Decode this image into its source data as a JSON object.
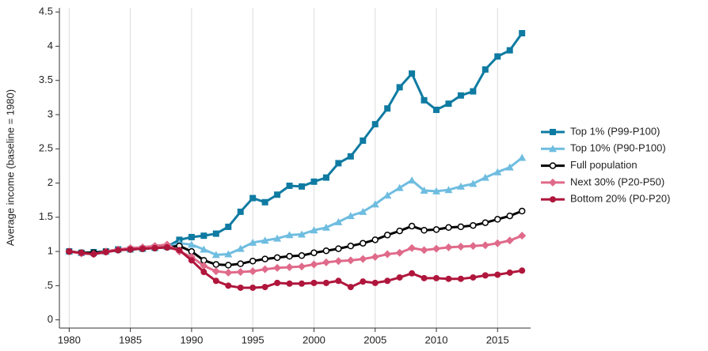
{
  "chart_data": {
    "type": "line",
    "y_label": "Average income (baseline = 1980)",
    "x": [
      1980,
      1981,
      1982,
      1983,
      1984,
      1985,
      1986,
      1987,
      1988,
      1989,
      1990,
      1991,
      1992,
      1993,
      1994,
      1995,
      1996,
      1997,
      1998,
      1999,
      2000,
      2001,
      2002,
      2003,
      2004,
      2005,
      2006,
      2007,
      2008,
      2009,
      2010,
      2011,
      2012,
      2013,
      2014,
      2015,
      2016,
      2017
    ],
    "xlim": [
      1979.2,
      2017.7
    ],
    "xticks": [
      1980,
      1985,
      1990,
      1995,
      2000,
      2005,
      2010,
      2015
    ],
    "ylim": [
      -0.12,
      4.56
    ],
    "yticks": [
      0,
      {
        "value": 0.5,
        "label": ".5"
      },
      1,
      1.5,
      2,
      2.5,
      3,
      3.5,
      4,
      4.5
    ],
    "grid": "x",
    "legend": "right",
    "series": [
      {
        "name": "Top 1% (P99-P100)",
        "color": "#0f7ba2",
        "marker": "square",
        "values": [
          1.0,
          0.98,
          0.99,
          1.0,
          1.03,
          1.03,
          1.04,
          1.06,
          1.07,
          1.17,
          1.21,
          1.23,
          1.26,
          1.36,
          1.58,
          1.78,
          1.72,
          1.83,
          1.96,
          1.95,
          2.02,
          2.08,
          2.29,
          2.39,
          2.62,
          2.86,
          3.09,
          3.4,
          3.6,
          3.21,
          3.07,
          3.16,
          3.28,
          3.34,
          3.66,
          3.85,
          3.94,
          4.19
        ]
      },
      {
        "name": "Top 10% (P90-P100)",
        "color": "#6fbde0",
        "marker": "triangle",
        "values": [
          1.0,
          0.98,
          0.98,
          1.0,
          1.03,
          1.03,
          1.04,
          1.05,
          1.07,
          1.12,
          1.1,
          1.03,
          0.95,
          0.96,
          1.04,
          1.13,
          1.16,
          1.19,
          1.24,
          1.25,
          1.31,
          1.35,
          1.43,
          1.52,
          1.58,
          1.69,
          1.82,
          1.93,
          2.04,
          1.89,
          1.88,
          1.9,
          1.95,
          1.99,
          2.08,
          2.16,
          2.23,
          2.37
        ]
      },
      {
        "name": "Full population",
        "color": "#000000",
        "marker": "open-circle",
        "values": [
          1.0,
          0.98,
          0.98,
          1.0,
          1.02,
          1.03,
          1.04,
          1.05,
          1.06,
          1.08,
          1.0,
          0.87,
          0.81,
          0.8,
          0.82,
          0.86,
          0.89,
          0.91,
          0.93,
          0.94,
          0.98,
          1.01,
          1.04,
          1.08,
          1.12,
          1.17,
          1.24,
          1.3,
          1.37,
          1.31,
          1.32,
          1.35,
          1.36,
          1.38,
          1.42,
          1.47,
          1.52,
          1.59
        ]
      },
      {
        "name": "Next 30% (P20-P50)",
        "color": "#e06a8a",
        "marker": "diamond",
        "values": [
          1.0,
          0.97,
          0.96,
          1.0,
          1.03,
          1.05,
          1.06,
          1.08,
          1.1,
          1.0,
          0.92,
          0.79,
          0.71,
          0.69,
          0.7,
          0.71,
          0.74,
          0.76,
          0.77,
          0.78,
          0.81,
          0.84,
          0.86,
          0.87,
          0.89,
          0.92,
          0.96,
          0.98,
          1.05,
          1.02,
          1.04,
          1.06,
          1.07,
          1.08,
          1.09,
          1.12,
          1.16,
          1.23
        ]
      },
      {
        "name": "Bottom 20% (P0-P20)",
        "color": "#b0163c",
        "marker": "circle",
        "values": [
          1.0,
          0.98,
          0.96,
          0.99,
          1.02,
          1.03,
          1.04,
          1.05,
          1.06,
          1.02,
          0.87,
          0.7,
          0.57,
          0.5,
          0.47,
          0.47,
          0.48,
          0.54,
          0.53,
          0.53,
          0.54,
          0.54,
          0.57,
          0.48,
          0.56,
          0.54,
          0.57,
          0.62,
          0.68,
          0.61,
          0.61,
          0.6,
          0.6,
          0.62,
          0.65,
          0.66,
          0.69,
          0.72
        ]
      }
    ]
  }
}
